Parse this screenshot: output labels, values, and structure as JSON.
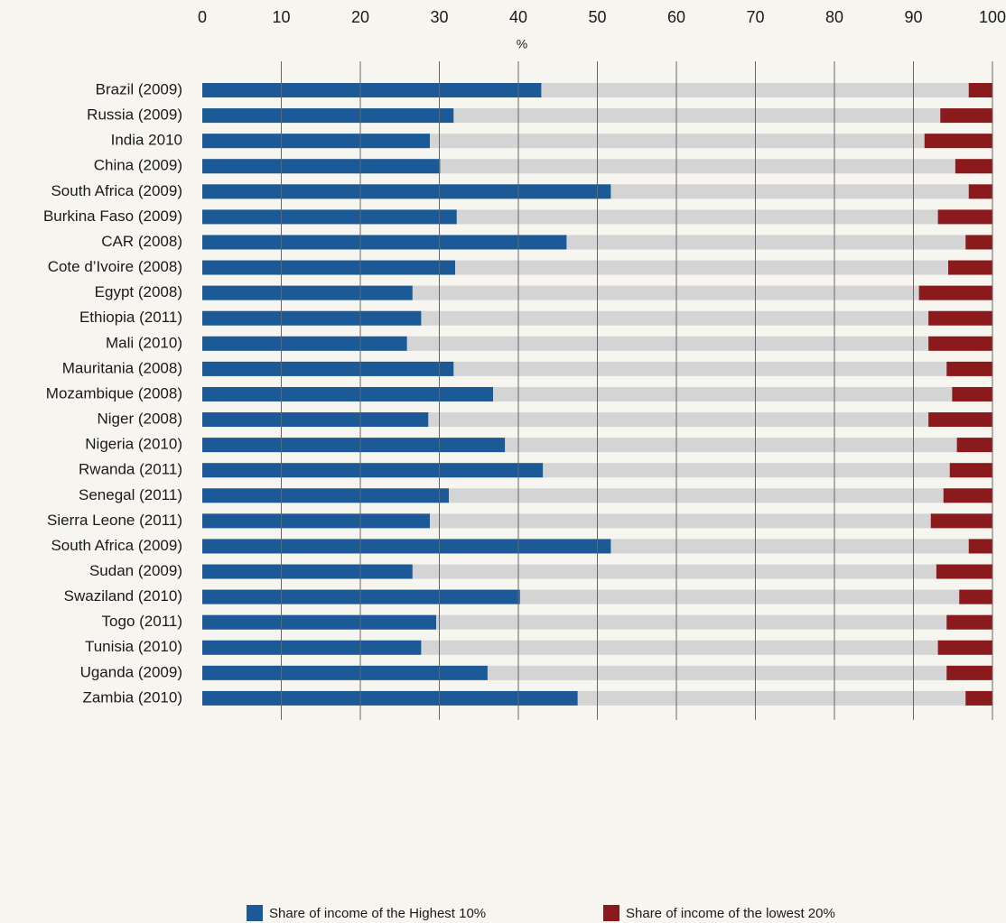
{
  "chart_data": {
    "type": "bar",
    "orientation": "horizontal",
    "x_label": "%",
    "categories": [
      "Brazil (2009)",
      "Russia (2009)",
      "India 2010",
      "China (2009)",
      "South Africa (2009)",
      "Burkina Faso (2009)",
      "CAR (2008)",
      "Cote d’Ivoire (2008)",
      "Egypt (2008)",
      "Ethiopia (2011)",
      "Mali (2010)",
      "Mauritania (2008)",
      "Mozambique (2008)",
      "Niger (2008)",
      "Nigeria (2010)",
      "Rwanda (2011)",
      "Senegal (2011)",
      "Sierra Leone (2011)",
      "South Africa (2009)",
      "Sudan (2009)",
      "Swaziland (2010)",
      "Togo (2011)",
      "Tunisia (2010)",
      "Uganda (2009)",
      "Zambia (2010)"
    ],
    "series": [
      {
        "name": "Share of income of the Highest 10%",
        "color": "#1b5a96",
        "position": "start",
        "values": [
          42.9,
          31.8,
          28.8,
          30.1,
          51.7,
          32.2,
          46.1,
          32.0,
          26.6,
          27.7,
          25.9,
          31.8,
          36.8,
          28.6,
          38.3,
          43.1,
          31.2,
          28.8,
          51.7,
          26.6,
          40.2,
          29.6,
          27.7,
          36.1,
          47.5
        ]
      },
      {
        "name": "Share of income of the lowest 20%",
        "color": "#8b1a1c",
        "position": "end",
        "values": [
          3.0,
          6.6,
          8.6,
          4.7,
          3.0,
          6.9,
          3.4,
          5.6,
          9.3,
          8.1,
          8.1,
          5.8,
          5.1,
          8.1,
          4.5,
          5.4,
          6.2,
          7.8,
          3.0,
          7.1,
          4.2,
          5.8,
          6.9,
          5.8,
          3.4
        ]
      }
    ],
    "xlim": [
      0,
      100
    ],
    "xticks": [
      0,
      10,
      20,
      30,
      40,
      50,
      60,
      70,
      80,
      90,
      100
    ],
    "grid": true,
    "legend": "bottom"
  }
}
